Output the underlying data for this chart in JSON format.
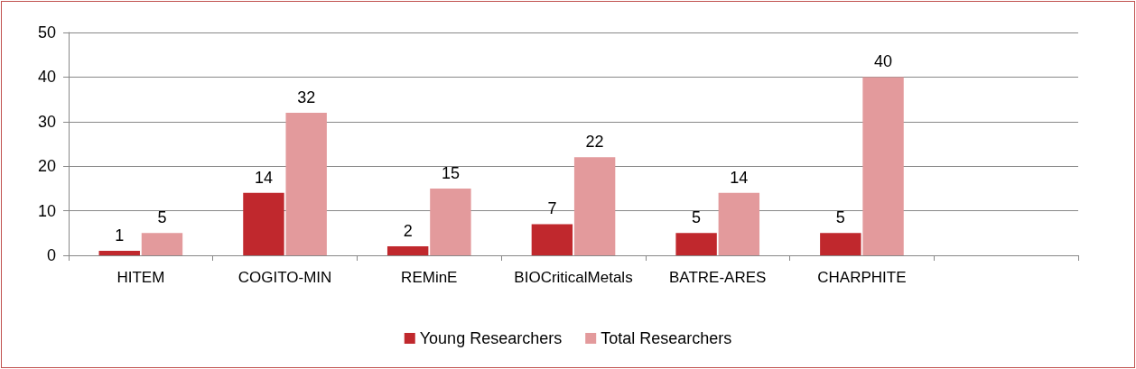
{
  "chart_data": {
    "type": "bar",
    "categories": [
      "HITEM",
      "COGITO-MIN",
      "REMinE",
      "BIOCriticalMetals",
      "BATRE-ARES",
      "CHARPHITE",
      null
    ],
    "series": [
      {
        "name": "Young Researchers",
        "color": "#c0282d",
        "values": [
          1,
          14,
          2,
          7,
          5,
          5,
          null
        ]
      },
      {
        "name": "Total Researchers",
        "color": "#e39a9c",
        "values": [
          5,
          32,
          15,
          22,
          14,
          40,
          null
        ]
      }
    ],
    "ylim": [
      0,
      50
    ],
    "yticks": [
      0,
      10,
      20,
      30,
      40,
      50
    ],
    "grid": "y",
    "legend": "bottom",
    "data_labels": true
  }
}
